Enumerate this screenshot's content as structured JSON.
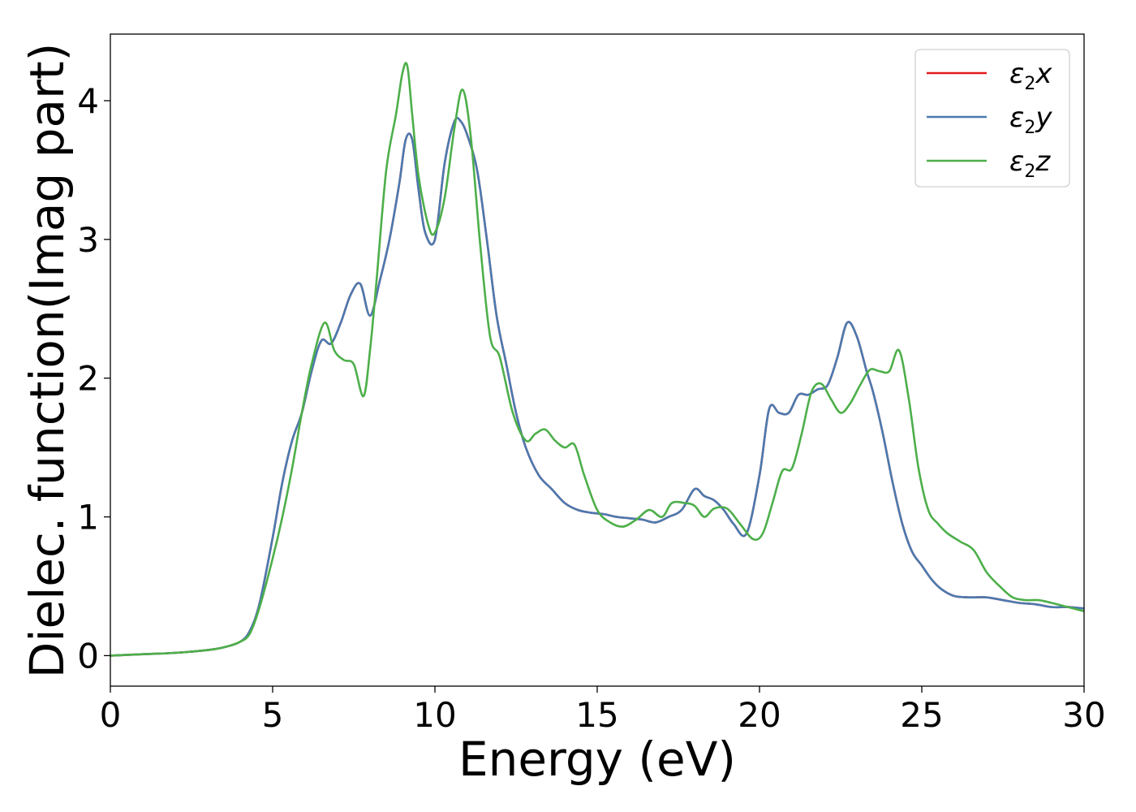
{
  "chart_data": {
    "type": "line",
    "xlabel": "Energy (eV)",
    "ylabel": "Dielec. function(Imag part)",
    "xlim": [
      0,
      30
    ],
    "ylim": [
      -0.22,
      4.48
    ],
    "xticks": [
      0,
      5,
      10,
      15,
      20,
      25,
      30
    ],
    "yticks": [
      0,
      1,
      2,
      3,
      4
    ],
    "xtick_labels": [
      "0",
      "5",
      "10",
      "15",
      "20",
      "25",
      "30"
    ],
    "ytick_labels": [
      "0",
      "1",
      "2",
      "3",
      "4"
    ],
    "grid": false,
    "legend_position": "top-right",
    "series": [
      {
        "name": "ε2x",
        "legend_main": "ε",
        "legend_sub": "2",
        "legend_tail": "x",
        "color": "#e41a1c",
        "x": [
          0,
          1,
          2,
          3,
          3.5,
          4,
          4.3,
          4.6,
          5,
          5.3,
          5.6,
          5.9,
          6.2,
          6.5,
          6.8,
          7.1,
          7.4,
          7.7,
          8,
          8.3,
          8.6,
          8.9,
          9.1,
          9.3,
          9.5,
          9.7,
          10,
          10.3,
          10.6,
          10.8,
          11,
          11.3,
          11.6,
          11.9,
          12.2,
          12.5,
          12.8,
          13.2,
          13.6,
          14,
          14.4,
          14.8,
          15.2,
          15.6,
          16,
          16.4,
          16.8,
          17.2,
          17.6,
          18,
          18.3,
          18.6,
          18.9,
          19.2,
          19.6,
          20,
          20.3,
          20.6,
          20.9,
          21.2,
          21.5,
          21.8,
          22.1,
          22.4,
          22.7,
          23,
          23.3,
          23.5,
          23.8,
          24.1,
          24.4,
          24.7,
          25,
          25.3,
          25.6,
          26,
          26.5,
          27,
          27.5,
          28,
          28.5,
          29,
          29.5,
          30
        ],
        "y": [
          0,
          0.01,
          0.02,
          0.04,
          0.06,
          0.1,
          0.18,
          0.38,
          0.85,
          1.25,
          1.55,
          1.75,
          2.05,
          2.27,
          2.25,
          2.4,
          2.6,
          2.68,
          2.45,
          2.7,
          3.0,
          3.4,
          3.72,
          3.72,
          3.35,
          3.05,
          3.0,
          3.55,
          3.85,
          3.85,
          3.75,
          3.5,
          3.0,
          2.45,
          2.1,
          1.75,
          1.5,
          1.3,
          1.2,
          1.1,
          1.05,
          1.03,
          1.02,
          1.0,
          0.99,
          0.98,
          0.96,
          1.0,
          1.05,
          1.2,
          1.15,
          1.12,
          1.05,
          0.95,
          0.88,
          1.3,
          1.78,
          1.75,
          1.75,
          1.88,
          1.88,
          1.92,
          1.95,
          2.15,
          2.4,
          2.3,
          2.05,
          1.9,
          1.6,
          1.25,
          0.95,
          0.75,
          0.65,
          0.55,
          0.48,
          0.43,
          0.42,
          0.42,
          0.4,
          0.38,
          0.37,
          0.35,
          0.35,
          0.34
        ]
      },
      {
        "name": "ε2y",
        "legend_main": "ε",
        "legend_sub": "2",
        "legend_tail": "y",
        "color": "#4a7ab0",
        "x": [
          0,
          1,
          2,
          3,
          3.5,
          4,
          4.3,
          4.6,
          5,
          5.3,
          5.6,
          5.9,
          6.2,
          6.5,
          6.8,
          7.1,
          7.4,
          7.7,
          8,
          8.3,
          8.6,
          8.9,
          9.1,
          9.3,
          9.5,
          9.7,
          10,
          10.3,
          10.6,
          10.8,
          11,
          11.3,
          11.6,
          11.9,
          12.2,
          12.5,
          12.8,
          13.2,
          13.6,
          14,
          14.4,
          14.8,
          15.2,
          15.6,
          16,
          16.4,
          16.8,
          17.2,
          17.6,
          18,
          18.3,
          18.6,
          18.9,
          19.2,
          19.6,
          20,
          20.3,
          20.6,
          20.9,
          21.2,
          21.5,
          21.8,
          22.1,
          22.4,
          22.7,
          23,
          23.3,
          23.5,
          23.8,
          24.1,
          24.4,
          24.7,
          25,
          25.3,
          25.6,
          26,
          26.5,
          27,
          27.5,
          28,
          28.5,
          29,
          29.5,
          30
        ],
        "y": [
          0,
          0.01,
          0.02,
          0.04,
          0.06,
          0.1,
          0.18,
          0.38,
          0.85,
          1.25,
          1.55,
          1.75,
          2.05,
          2.27,
          2.25,
          2.4,
          2.6,
          2.68,
          2.45,
          2.7,
          3.0,
          3.4,
          3.72,
          3.72,
          3.35,
          3.05,
          3.0,
          3.55,
          3.85,
          3.85,
          3.75,
          3.5,
          3.0,
          2.45,
          2.1,
          1.75,
          1.5,
          1.3,
          1.2,
          1.1,
          1.05,
          1.03,
          1.02,
          1.0,
          0.99,
          0.98,
          0.96,
          1.0,
          1.05,
          1.2,
          1.15,
          1.12,
          1.05,
          0.95,
          0.88,
          1.3,
          1.78,
          1.75,
          1.75,
          1.88,
          1.88,
          1.92,
          1.95,
          2.15,
          2.4,
          2.3,
          2.05,
          1.9,
          1.6,
          1.25,
          0.95,
          0.75,
          0.65,
          0.55,
          0.48,
          0.43,
          0.42,
          0.42,
          0.4,
          0.38,
          0.37,
          0.35,
          0.35,
          0.34
        ]
      },
      {
        "name": "ε2z",
        "legend_main": "ε",
        "legend_sub": "2",
        "legend_tail": "z",
        "color": "#4daf4a",
        "x": [
          0,
          1,
          2,
          3,
          3.5,
          4,
          4.3,
          4.6,
          5,
          5.3,
          5.6,
          5.9,
          6.2,
          6.6,
          6.9,
          7.2,
          7.5,
          7.8,
          8.0,
          8.2,
          8.5,
          8.8,
          9.0,
          9.15,
          9.3,
          9.5,
          9.8,
          10.0,
          10.3,
          10.6,
          10.85,
          11.1,
          11.4,
          11.7,
          12.0,
          12.4,
          12.8,
          13.1,
          13.4,
          13.7,
          14.0,
          14.3,
          14.6,
          15.0,
          15.4,
          15.8,
          16.2,
          16.6,
          17.0,
          17.3,
          17.7,
          18.0,
          18.3,
          18.6,
          19.0,
          19.4,
          19.8,
          20.1,
          20.4,
          20.7,
          21.0,
          21.3,
          21.6,
          21.9,
          22.2,
          22.5,
          22.8,
          23.1,
          23.4,
          23.7,
          24.0,
          24.3,
          24.6,
          24.9,
          25.2,
          25.5,
          25.8,
          26.2,
          26.6,
          27.0,
          27.4,
          27.8,
          28.2,
          28.6,
          29.0,
          29.5,
          30
        ],
        "y": [
          0,
          0.01,
          0.02,
          0.04,
          0.06,
          0.1,
          0.16,
          0.35,
          0.7,
          1.0,
          1.35,
          1.75,
          2.1,
          2.4,
          2.2,
          2.13,
          2.1,
          1.87,
          2.2,
          2.7,
          3.5,
          3.9,
          4.2,
          4.25,
          3.9,
          3.45,
          3.1,
          3.05,
          3.3,
          3.8,
          4.08,
          3.75,
          2.95,
          2.3,
          2.15,
          1.75,
          1.55,
          1.6,
          1.63,
          1.55,
          1.5,
          1.52,
          1.3,
          1.05,
          0.96,
          0.93,
          0.98,
          1.05,
          1.0,
          1.1,
          1.1,
          1.08,
          1.0,
          1.06,
          1.06,
          0.95,
          0.84,
          0.88,
          1.1,
          1.33,
          1.35,
          1.6,
          1.9,
          1.96,
          1.85,
          1.75,
          1.82,
          1.95,
          2.06,
          2.05,
          2.05,
          2.2,
          1.85,
          1.35,
          1.05,
          0.95,
          0.88,
          0.82,
          0.76,
          0.6,
          0.5,
          0.42,
          0.4,
          0.4,
          0.38,
          0.35,
          0.32
        ]
      }
    ]
  }
}
